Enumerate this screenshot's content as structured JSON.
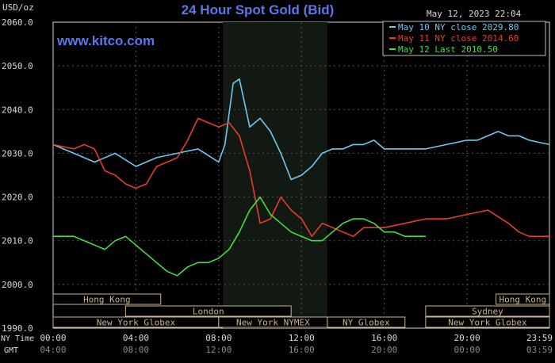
{
  "chart_data": {
    "type": "line",
    "title": "24 Hour Spot Gold (Bid)",
    "unit_label": "USD/oz",
    "timestamp": "May 12, 2023 22:04",
    "watermark": "www.kitco.com",
    "ylim": [
      1990,
      2060
    ],
    "yticks": [
      "2060.0",
      "2050.0",
      "2040.0",
      "2030.0",
      "2020.0",
      "2010.0",
      "2000.0",
      "1990.0"
    ],
    "xticks": {
      "ny": [
        "00:00",
        "04:00",
        "08:00",
        "12:00",
        "16:00",
        "20:00",
        "23:59"
      ],
      "gmt": [
        "04:00",
        "08:00",
        "12:00",
        "16:00",
        "20:00",
        "00:00",
        "03:59"
      ]
    },
    "row_labels": {
      "ny": "NY Time",
      "gmt": "GMT"
    },
    "series": [
      {
        "name": "May 10 NY close 2029.80",
        "color": "#6fc8f0",
        "x": [
          0,
          1,
          2,
          3,
          4,
          5,
          6,
          7,
          8,
          8.3,
          8.7,
          9,
          9.5,
          10,
          10.5,
          11,
          11.5,
          12,
          12.5,
          13,
          13.5,
          14,
          14.5,
          15,
          15.5,
          16,
          16.5,
          17,
          18,
          19,
          20,
          20.5,
          21,
          21.5,
          22,
          22.5,
          23,
          23.98
        ],
        "y": [
          2032,
          2030,
          2028,
          2030,
          2027,
          2029,
          2030,
          2031,
          2028,
          2032,
          2046,
          2047,
          2036,
          2038,
          2035,
          2030,
          2024,
          2025,
          2027,
          2030,
          2031,
          2031,
          2032,
          2032,
          2033,
          2031,
          2031,
          2031,
          2031,
          2032,
          2033,
          2033,
          2034,
          2035,
          2034,
          2034,
          2033,
          2032
        ]
      },
      {
        "name": "May 11 NY close 2014.60",
        "color": "#e83c2a",
        "x": [
          0,
          1,
          1.5,
          2,
          2.5,
          3,
          3.5,
          4,
          4.5,
          5,
          5.5,
          6,
          6.5,
          7,
          7.5,
          8,
          8.5,
          9,
          9.5,
          10,
          10.5,
          11,
          11.5,
          12,
          12.5,
          13,
          13.5,
          14,
          14.5,
          15,
          16,
          17,
          18,
          19,
          20,
          21,
          22,
          22.5,
          23,
          23.98
        ],
        "y": [
          2032,
          2031,
          2032,
          2031,
          2026,
          2025,
          2023,
          2022,
          2023,
          2027,
          2028,
          2029,
          2033,
          2038,
          2037,
          2036,
          2037,
          2034,
          2026,
          2014,
          2015,
          2020,
          2017,
          2015,
          2011,
          2014,
          2013,
          2012,
          2011,
          2013,
          2013,
          2014,
          2015,
          2015,
          2016,
          2017,
          2014,
          2012,
          2011,
          2011
        ]
      },
      {
        "name": "May 12 Last 2010.50",
        "color": "#3fe03f",
        "x": [
          0,
          1,
          1.5,
          2,
          2.5,
          3,
          3.5,
          4,
          4.5,
          5,
          5.5,
          6,
          6.5,
          7,
          7.5,
          8,
          8.5,
          9,
          9.5,
          10,
          10.5,
          11,
          11.5,
          12,
          12.5,
          13,
          13.5,
          14,
          14.5,
          15,
          15.5,
          16,
          16.5,
          17,
          17.5,
          18
        ],
        "y": [
          2011,
          2011,
          2010,
          2009,
          2008,
          2010,
          2011,
          2009,
          2007,
          2005,
          2003,
          2002,
          2004,
          2005,
          2005,
          2006,
          2008,
          2012,
          2017,
          2020,
          2016,
          2014,
          2012,
          2011,
          2010,
          2010,
          2012,
          2014,
          2015,
          2015,
          2014,
          2012,
          2012,
          2011,
          2011,
          2011
        ]
      }
    ],
    "sessions": [
      {
        "label": "Hong Kong",
        "start": 0,
        "end": 5.2,
        "row": 0
      },
      {
        "label": "Hong Kong",
        "start": 21.4,
        "end": 23.98,
        "row": 0
      },
      {
        "label": "London",
        "start": 3.5,
        "end": 11.5,
        "row": 1
      },
      {
        "label": "Sydney",
        "start": 18,
        "end": 23.98,
        "row": 1
      },
      {
        "label": "New York Globex",
        "start": 0,
        "end": 8,
        "row": 2
      },
      {
        "label": "New York NYMEX",
        "start": 8,
        "end": 13.25,
        "row": 2
      },
      {
        "label": "NY Globex",
        "start": 13.25,
        "end": 17,
        "row": 2
      },
      {
        "label": "New York Globex",
        "start": 18,
        "end": 23.98,
        "row": 2
      }
    ],
    "highlight_range": [
      8.2,
      13.25
    ],
    "grid": true,
    "legend_position": "top-right"
  }
}
